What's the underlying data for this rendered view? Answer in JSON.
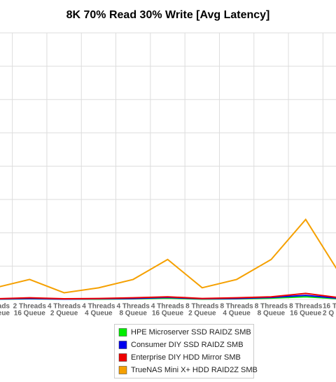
{
  "chart_data": {
    "type": "line",
    "title": "8K 70% Read 30% Write [Avg Latency]",
    "categories": [
      [
        "reads",
        "ueue"
      ],
      [
        "2 Threads",
        "16 Queue"
      ],
      [
        "4 Threads",
        "2 Queue"
      ],
      [
        "4 Threads",
        "4 Queue"
      ],
      [
        "4 Threads",
        "8 Queue"
      ],
      [
        "4 Threads",
        "16 Queue"
      ],
      [
        "8 Threads",
        "2 Queue"
      ],
      [
        "8 Threads",
        "4 Queue"
      ],
      [
        "8 Threads",
        "8 Queue"
      ],
      [
        "8 Threads",
        "16 Queue"
      ],
      [
        "16 Th",
        "2 Q"
      ]
    ],
    "ylim": [
      0,
      8
    ],
    "grid": true,
    "series": [
      {
        "name": "HPE Microserver SSD RAIDZ SMB",
        "color": "#00ee00",
        "values": [
          0.01,
          0.02,
          0.01,
          0.01,
          0.02,
          0.04,
          0.01,
          0.02,
          0.04,
          0.08,
          0.02
        ]
      },
      {
        "name": "Consumer DIY SSD RAIDZ SMB",
        "color": "#0000ee",
        "values": [
          0.01,
          0.03,
          0.01,
          0.02,
          0.03,
          0.06,
          0.02,
          0.03,
          0.06,
          0.12,
          0.03
        ]
      },
      {
        "name": "Enterprise DIY HDD Mirror SMB",
        "color": "#ee0000",
        "values": [
          0.02,
          0.05,
          0.02,
          0.03,
          0.05,
          0.08,
          0.03,
          0.05,
          0.08,
          0.18,
          0.05
        ]
      },
      {
        "name": "TrueNAS Mini X+ HDD RAID2Z SMB",
        "color": "#f5a000",
        "values": [
          0.35,
          0.6,
          0.2,
          0.35,
          0.6,
          1.2,
          0.35,
          0.6,
          1.2,
          2.4,
          0.75
        ]
      }
    ]
  }
}
